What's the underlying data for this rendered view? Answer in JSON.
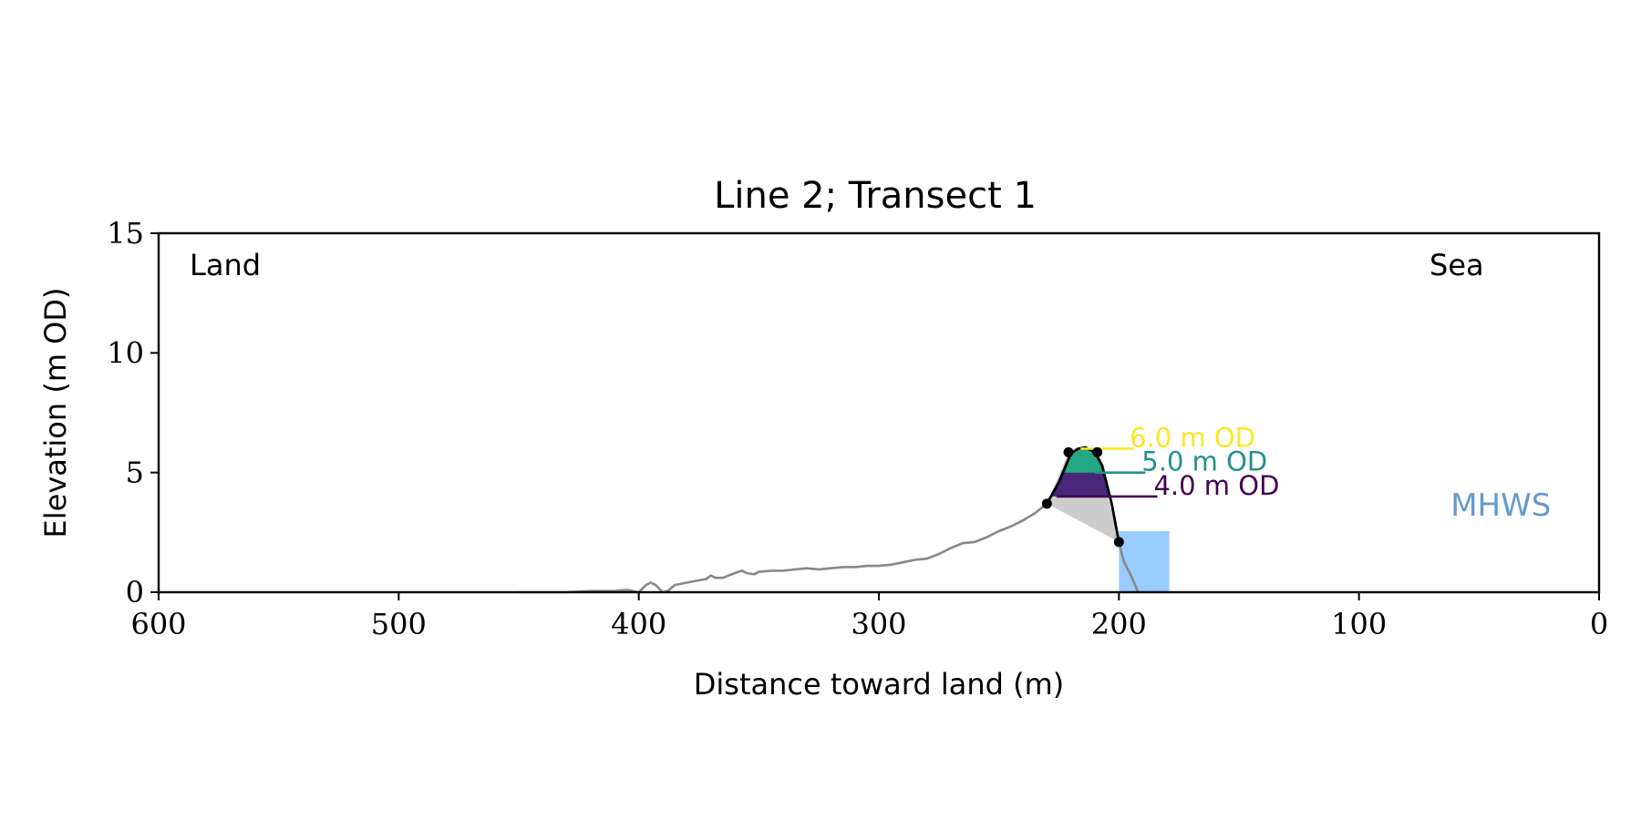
{
  "chart_data": {
    "type": "area",
    "title": "Line 2; Transect 1",
    "xlabel": "Distance toward land (m)",
    "ylabel": "Elevation (m OD)",
    "xlim": [
      600,
      0
    ],
    "ylim": [
      0,
      15
    ],
    "x_ticks": [
      600,
      500,
      400,
      300,
      200,
      100,
      0
    ],
    "y_ticks": [
      0,
      5,
      10,
      15
    ],
    "grid": false,
    "annotations": {
      "land": "Land",
      "sea": "Sea",
      "mhws": "MHWS"
    },
    "colors": {
      "profile": "#888888",
      "outline": "#000000",
      "wedge": "#cccccc",
      "mhws": "#99ccff",
      "mhws_text": "#6699cc",
      "level_6": "#fde725",
      "level_5": "#21918c",
      "level_4": "#440154",
      "fill_upper": "#23a884",
      "fill_lower": "#482878"
    },
    "profile": {
      "x": [
        450,
        430,
        420,
        410,
        405,
        400,
        397,
        395,
        393,
        390,
        388,
        385,
        380,
        375,
        372,
        370,
        368,
        365,
        360,
        357,
        355,
        352,
        350,
        345,
        340,
        335,
        330,
        325,
        320,
        315,
        310,
        305,
        300,
        295,
        290,
        285,
        280,
        275,
        270,
        265,
        260,
        255,
        250,
        245,
        240,
        235,
        230
      ],
      "y": [
        0.0,
        0.0,
        0.05,
        0.05,
        0.1,
        0.0,
        0.3,
        0.4,
        0.3,
        0.0,
        0.05,
        0.3,
        0.4,
        0.5,
        0.55,
        0.7,
        0.6,
        0.6,
        0.8,
        0.9,
        0.8,
        0.75,
        0.85,
        0.9,
        0.9,
        0.95,
        1.0,
        0.95,
        1.0,
        1.05,
        1.05,
        1.1,
        1.1,
        1.15,
        1.25,
        1.35,
        1.4,
        1.6,
        1.85,
        2.05,
        2.1,
        2.3,
        2.55,
        2.75,
        3.0,
        3.3,
        3.7
      ]
    },
    "seaward_slope": {
      "x": [
        200,
        198,
        195,
        192
      ],
      "y": [
        2.1,
        1.3,
        0.7,
        0.0
      ]
    },
    "dune_outline": {
      "x": [
        230,
        225,
        220,
        217,
        214,
        210,
        207,
        203,
        200
      ],
      "y": [
        3.7,
        4.6,
        5.8,
        6.0,
        6.05,
        5.85,
        5.3,
        3.7,
        2.1
      ]
    },
    "markers": [
      {
        "x": 230,
        "y": 3.7
      },
      {
        "x": 221,
        "y": 5.85
      },
      {
        "x": 209,
        "y": 5.85
      },
      {
        "x": 200,
        "y": 2.1
      }
    ],
    "levels": [
      {
        "elevation": 6.0,
        "label": "6.0 m OD",
        "line_x": [
          216,
          194
        ]
      },
      {
        "elevation": 5.0,
        "label": "5.0 m OD",
        "line_x": [
          210,
          189
        ]
      },
      {
        "elevation": 4.0,
        "label": "4.0 m OD",
        "line_x": [
          226,
          184
        ]
      }
    ],
    "mhws_box": {
      "x0": 200,
      "x1": 179,
      "y0": 0,
      "y1": 2.55
    }
  }
}
